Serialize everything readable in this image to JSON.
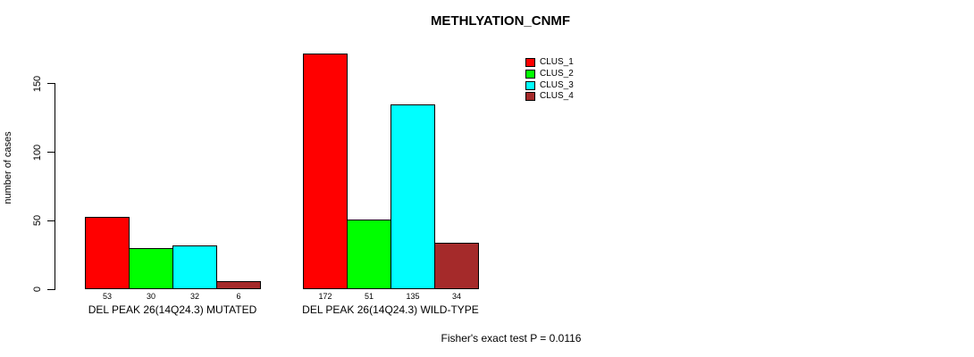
{
  "chart_data": {
    "type": "bar",
    "title": "METHLYATION_CNMF",
    "ylabel": "number of cases",
    "xlabel": "",
    "annotation": "Fisher's exact test P = 0.0116",
    "yticks": [
      0,
      50,
      100,
      150
    ],
    "ylim": [
      0,
      175
    ],
    "grid": false,
    "legend_position": "top-right",
    "categories": [
      "DEL PEAK 26(14Q24.3) MUTATED",
      "DEL PEAK 26(14Q24.3) WILD-TYPE"
    ],
    "series": [
      {
        "name": "CLUS_1",
        "color": "#FF0000",
        "values": [
          53,
          172
        ]
      },
      {
        "name": "CLUS_2",
        "color": "#00FF00",
        "values": [
          30,
          51
        ]
      },
      {
        "name": "CLUS_3",
        "color": "#00FFFF",
        "values": [
          32,
          135
        ]
      },
      {
        "name": "CLUS_4",
        "color": "#A52A2A",
        "values": [
          6,
          34
        ]
      }
    ],
    "bar_value_labels": [
      "53",
      "30",
      "32",
      "6",
      "172",
      "51",
      "135",
      "34"
    ]
  }
}
